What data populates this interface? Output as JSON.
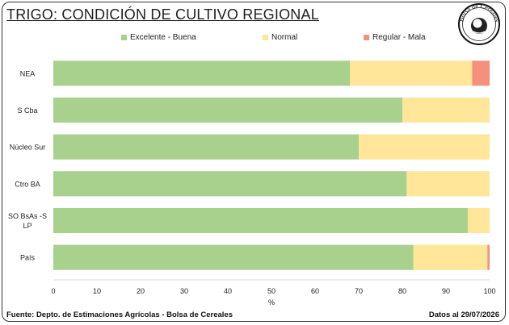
{
  "title": "TRIGO: CONDICIÓN DE CULTIVO REGIONAL",
  "logo_text": "Bolsa de Cereales",
  "colors": {
    "excelente": "#a9d18e",
    "normal": "#ffe699",
    "regular": "#f4907c",
    "bar_bg": "#ebebeb"
  },
  "chart_data": {
    "type": "bar",
    "orientation": "horizontal",
    "stacked": true,
    "categories": [
      "NEA",
      "S Cba",
      "Núcleo Sur",
      "Ctro BA",
      "SO BsAs -S LP",
      "País"
    ],
    "series": [
      {
        "name": "Excelente - Buena",
        "values": [
          68,
          80,
          70,
          81,
          95,
          82.5
        ]
      },
      {
        "name": "Normal",
        "values": [
          28,
          20,
          30,
          19,
          5,
          17
        ]
      },
      {
        "name": "Regular - Mala",
        "values": [
          4,
          0,
          0,
          0,
          0,
          0.5
        ]
      }
    ],
    "xlabel": "%",
    "xlim": [
      0,
      100
    ],
    "xticks": [
      0,
      10,
      20,
      30,
      40,
      50,
      60,
      70,
      80,
      90,
      100
    ],
    "grid": true,
    "legend_position": "top"
  },
  "footer": {
    "source": "Fuente: Depto. de Estimaciones Agrícolas - Bolsa de Cereales",
    "date": "Datos al 29/07/2026"
  }
}
